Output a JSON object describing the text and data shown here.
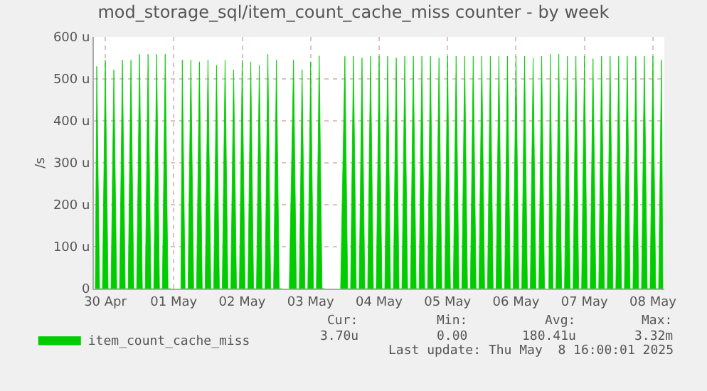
{
  "chart_data": {
    "type": "area",
    "title": "mod_storage_sql/item_count_cache_miss counter - by week",
    "ylabel": "/s",
    "x": [
      "2025-04-30T08:30",
      "2025-04-30T09:00",
      "2025-04-30T10:00",
      "2025-04-30T11:00",
      "2025-04-30T12:00",
      "2025-04-30T13:00",
      "2025-04-30T14:00",
      "2025-04-30T15:00",
      "2025-04-30T16:00",
      "2025-04-30T17:00",
      "2025-04-30T18:00",
      "2025-04-30T19:00",
      "2025-04-30T20:00",
      "2025-04-30T21:00",
      "2025-04-30T22:00",
      "2025-04-30T23:00",
      "2025-05-01T00:00",
      "2025-05-01T01:00",
      "2025-05-01T02:00",
      "2025-05-01T03:00",
      "2025-05-01T04:00",
      "2025-05-01T05:00",
      "2025-05-01T06:00",
      "2025-05-01T07:00",
      "2025-05-01T08:00",
      "2025-05-01T09:00",
      "2025-05-01T10:00",
      "2025-05-01T11:00",
      "2025-05-01T12:00",
      "2025-05-01T14:30",
      "2025-05-01T15:00",
      "2025-05-01T16:00",
      "2025-05-01T17:00",
      "2025-05-01T18:00",
      "2025-05-01T19:00",
      "2025-05-01T20:00",
      "2025-05-01T21:00",
      "2025-05-01T22:00",
      "2025-05-01T23:00",
      "2025-05-02T00:00",
      "2025-05-02T01:00",
      "2025-05-02T02:00",
      "2025-05-02T03:00",
      "2025-05-02T04:00",
      "2025-05-02T05:00",
      "2025-05-02T06:00",
      "2025-05-02T07:00",
      "2025-05-02T08:00",
      "2025-05-02T09:00",
      "2025-05-02T10:00",
      "2025-05-02T11:00",
      "2025-05-02T12:00",
      "2025-05-02T13:00",
      "2025-05-02T14:00",
      "2025-05-02T15:00",
      "2025-05-02T16:00",
      "2025-05-02T17:00",
      "2025-05-02T18:00",
      "2025-05-02T19:00",
      "2025-05-02T20:00",
      "2025-05-02T21:00",
      "2025-05-02T22:00",
      "2025-05-02T23:00",
      "2025-05-03T00:00",
      "2025-05-03T01:00",
      "2025-05-03T02:00",
      "2025-05-03T03:00",
      "2025-05-03T04:30",
      "2025-05-03T06:00",
      "2025-05-03T07:00",
      "2025-05-03T08:00",
      "2025-05-03T09:00",
      "2025-05-03T10:00",
      "2025-05-03T11:00",
      "2025-05-03T12:00",
      "2025-05-03T13:00",
      "2025-05-03T14:00",
      "2025-05-03T15:00",
      "2025-05-03T16:00",
      "2025-05-03T17:00",
      "2025-05-03T19:00",
      "2025-05-03T22:30",
      "2025-05-04T00:00",
      "2025-05-04T01:00",
      "2025-05-04T02:00",
      "2025-05-04T03:00",
      "2025-05-04T04:00",
      "2025-05-04T05:00",
      "2025-05-04T06:00",
      "2025-05-04T07:00",
      "2025-05-04T08:00",
      "2025-05-04T09:00",
      "2025-05-04T10:00",
      "2025-05-04T11:00",
      "2025-05-04T12:00",
      "2025-05-04T13:00",
      "2025-05-04T14:00",
      "2025-05-04T15:00",
      "2025-05-04T16:00",
      "2025-05-04T17:00",
      "2025-05-04T18:00",
      "2025-05-04T19:00",
      "2025-05-04T20:00",
      "2025-05-04T21:00",
      "2025-05-04T22:00",
      "2025-05-04T23:00",
      "2025-05-05T00:00",
      "2025-05-05T01:00",
      "2025-05-05T02:00",
      "2025-05-05T03:00",
      "2025-05-05T04:00",
      "2025-05-05T05:00",
      "2025-05-05T06:00",
      "2025-05-05T07:00",
      "2025-05-05T08:00",
      "2025-05-05T09:00",
      "2025-05-05T10:00",
      "2025-05-05T11:00",
      "2025-05-05T12:00",
      "2025-05-05T13:00",
      "2025-05-05T14:00",
      "2025-05-05T15:00",
      "2025-05-05T16:00",
      "2025-05-05T17:00",
      "2025-05-05T18:00",
      "2025-05-05T19:00",
      "2025-05-05T20:00",
      "2025-05-05T21:00",
      "2025-05-05T22:00",
      "2025-05-05T23:00",
      "2025-05-06T00:00",
      "2025-05-06T01:00",
      "2025-05-06T02:00",
      "2025-05-06T03:00",
      "2025-05-06T04:00",
      "2025-05-06T05:00",
      "2025-05-06T06:00",
      "2025-05-06T07:00",
      "2025-05-06T08:00",
      "2025-05-06T09:00",
      "2025-05-06T10:00",
      "2025-05-06T11:00",
      "2025-05-06T12:00",
      "2025-05-06T13:00",
      "2025-05-06T14:00",
      "2025-05-06T15:00",
      "2025-05-06T16:00",
      "2025-05-06T17:00",
      "2025-05-06T18:00",
      "2025-05-06T19:00",
      "2025-05-06T20:00",
      "2025-05-06T21:00",
      "2025-05-06T22:00",
      "2025-05-06T22:30",
      "2025-05-06T23:00",
      "2025-05-06T23:30",
      "2025-05-07T00:00",
      "2025-05-07T01:00",
      "2025-05-07T02:00",
      "2025-05-07T03:00",
      "2025-05-07T04:00",
      "2025-05-07T05:00",
      "2025-05-07T06:00",
      "2025-05-07T07:00",
      "2025-05-07T08:00",
      "2025-05-07T09:00",
      "2025-05-07T10:00",
      "2025-05-07T11:00",
      "2025-05-07T12:00",
      "2025-05-07T13:00",
      "2025-05-07T14:00",
      "2025-05-07T15:00",
      "2025-05-07T16:00",
      "2025-05-07T17:00",
      "2025-05-07T18:00",
      "2025-05-07T19:00",
      "2025-05-07T20:00",
      "2025-05-07T21:00",
      "2025-05-07T22:00",
      "2025-05-07T23:00",
      "2025-05-08T00:00",
      "2025-05-08T01:00",
      "2025-05-08T02:00",
      "2025-05-08T03:00",
      "2025-05-08T04:00",
      "2025-05-08T05:00",
      "2025-05-08T06:00",
      "2025-05-08T07:00",
      "2025-05-08T08:00",
      "2025-05-08T09:00",
      "2025-05-08T10:00",
      "2025-05-08T11:00",
      "2025-05-08T12:00",
      "2025-05-08T13:00",
      "2025-05-08T14:00",
      "2025-05-08T15:00",
      "2025-05-08T15:30"
    ],
    "series": [
      {
        "name": "item_count_cache_miss",
        "color": "#00cc00",
        "values": [
          0,
          530,
          0,
          0,
          545,
          0,
          0,
          522,
          0,
          0,
          545,
          0,
          0,
          545,
          0,
          0,
          559,
          0,
          0,
          559,
          0,
          0,
          559,
          0,
          0,
          559,
          0,
          0,
          null,
          0,
          545,
          0,
          0,
          545,
          0,
          0,
          541,
          0,
          0,
          545,
          0,
          0,
          533,
          0,
          0,
          545,
          0,
          0,
          522,
          0,
          0,
          545,
          0,
          0,
          541,
          0,
          0,
          533,
          0,
          0,
          559,
          0,
          0,
          545,
          0,
          0,
          null,
          0,
          545,
          0,
          0,
          522,
          0,
          0,
          541,
          0,
          0,
          555,
          0,
          0,
          null,
          0,
          554,
          0,
          0,
          554,
          0,
          0,
          550,
          0,
          0,
          554,
          0,
          0,
          554,
          0,
          0,
          554,
          0,
          0,
          550,
          0,
          0,
          554,
          0,
          0,
          554,
          0,
          0,
          554,
          0,
          0,
          554,
          0,
          0,
          550,
          0,
          0,
          554,
          0,
          0,
          554,
          0,
          0,
          554,
          0,
          0,
          554,
          0,
          0,
          554,
          0,
          0,
          554,
          0,
          0,
          554,
          0,
          0,
          554,
          0,
          0,
          554,
          0,
          0,
          554,
          0,
          0,
          550,
          0,
          0,
          554,
          0,
          0,
          null,
          0,
          559,
          0,
          0,
          559,
          0,
          0,
          554,
          0,
          0,
          554,
          0,
          0,
          554,
          0,
          0,
          548,
          0,
          0,
          554,
          0,
          0,
          554,
          0,
          0,
          554,
          0,
          0,
          554,
          0,
          0,
          554,
          0,
          0,
          554,
          0,
          0,
          554,
          0,
          0,
          545,
          0
        ]
      }
    ],
    "xlim": [
      "2025-04-30T08:00",
      "2025-05-08T16:00"
    ],
    "xticks": [
      {
        "value": "2025-04-30T12:00",
        "label": "30 Apr"
      },
      {
        "value": "2025-05-01T12:00",
        "label": "01 May"
      },
      {
        "value": "2025-05-02T12:00",
        "label": "02 May"
      },
      {
        "value": "2025-05-03T12:00",
        "label": "03 May"
      },
      {
        "value": "2025-05-04T12:00",
        "label": "04 May"
      },
      {
        "value": "2025-05-05T12:00",
        "label": "05 May"
      },
      {
        "value": "2025-05-06T12:00",
        "label": "06 May"
      },
      {
        "value": "2025-05-07T12:00",
        "label": "07 May"
      },
      {
        "value": "2025-05-08T12:00",
        "label": "08 May"
      }
    ],
    "ylim": [
      0,
      600
    ],
    "yticks": [
      {
        "value": 0,
        "label": "0"
      },
      {
        "value": 100,
        "label": "100 u"
      },
      {
        "value": 200,
        "label": "200 u"
      },
      {
        "value": 300,
        "label": "300 u"
      },
      {
        "value": 400,
        "label": "400 u"
      },
      {
        "value": 500,
        "label": "500 u"
      },
      {
        "value": 600,
        "label": "600 u"
      }
    ],
    "grid": true,
    "legend": "bottom left",
    "annotations": [
      "Cur:",
      "Min:",
      "Avg:",
      "Max:",
      "3.70u",
      "0.00",
      "180.41u",
      "3.32m",
      "Last update: Thu May  8 16:00:01 2025"
    ]
  }
}
